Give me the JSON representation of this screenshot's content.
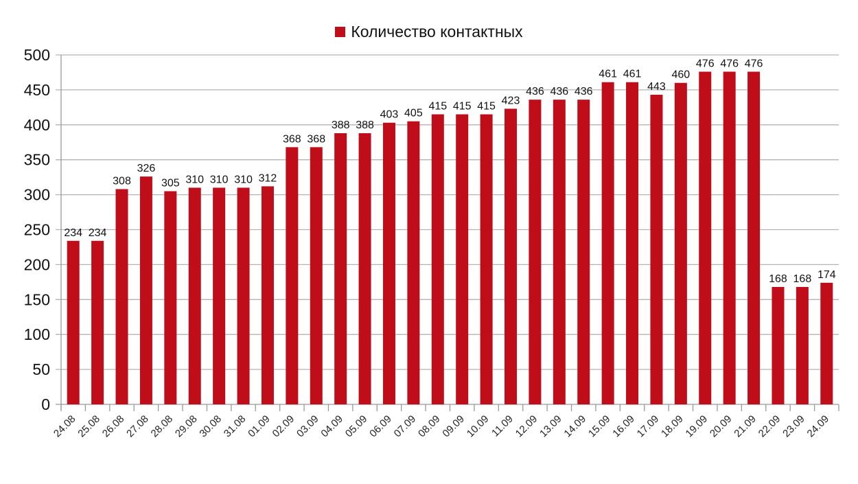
{
  "chart_data": {
    "type": "bar",
    "title": "",
    "xlabel": "",
    "ylabel": "",
    "legend_position": "top",
    "grid": true,
    "ylim": [
      0,
      500
    ],
    "yticks": [
      0,
      50,
      100,
      150,
      200,
      250,
      300,
      350,
      400,
      450,
      500
    ],
    "categories": [
      "24.08",
      "25.08",
      "26.08",
      "27.08",
      "28.08",
      "29.08",
      "30.08",
      "31.08",
      "01.09",
      "02.09",
      "03.09",
      "04.09",
      "05.09",
      "06.09",
      "07.09",
      "08.09",
      "09.09",
      "10.09",
      "11.09",
      "12.09",
      "13.09",
      "14.09",
      "15.09",
      "16.09",
      "17.09",
      "18.09",
      "19.09",
      "20.09",
      "21.09",
      "22.09",
      "23.09",
      "24.09"
    ],
    "series": [
      {
        "name": "Количество контактных",
        "color": "#c00d1a",
        "values": [
          234,
          234,
          308,
          326,
          305,
          310,
          310,
          310,
          312,
          368,
          368,
          388,
          388,
          403,
          405,
          415,
          415,
          415,
          423,
          436,
          436,
          436,
          461,
          461,
          443,
          460,
          476,
          476,
          476,
          168,
          168,
          174
        ]
      }
    ]
  }
}
